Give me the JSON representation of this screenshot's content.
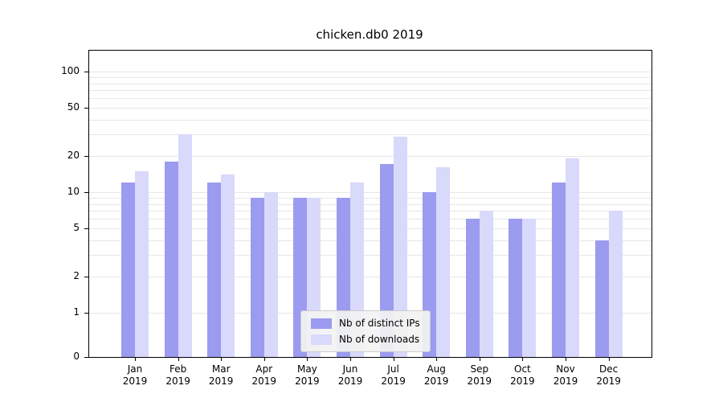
{
  "chart_data": {
    "type": "bar",
    "title": "chicken.db0 2019",
    "year": "2019",
    "categories": [
      "Jan",
      "Feb",
      "Mar",
      "Apr",
      "May",
      "Jun",
      "Jul",
      "Aug",
      "Sep",
      "Oct",
      "Nov",
      "Dec"
    ],
    "series": [
      {
        "name": "Nb of distinct IPs",
        "color": "#9b9bef",
        "values": [
          12,
          18,
          12,
          9,
          9,
          9,
          17,
          10,
          6,
          6,
          12,
          4
        ]
      },
      {
        "name": "Nb of downloads",
        "color": "#d9d9fb",
        "values": [
          15,
          30,
          14,
          10,
          9,
          12,
          29,
          16,
          7,
          6,
          19,
          7
        ]
      }
    ],
    "yscale": "symlog",
    "ylim": [
      0,
      150
    ],
    "y_ticks": [
      0,
      1,
      2,
      5,
      10,
      20,
      50,
      100
    ],
    "grid_values": [
      1,
      2,
      3,
      4,
      5,
      6,
      7,
      8,
      9,
      10,
      20,
      30,
      40,
      50,
      60,
      70,
      80,
      90,
      100
    ],
    "grid": "on",
    "legend_position": "bottom-center",
    "xlabel": "",
    "ylabel": "",
    "colors": {
      "grid": "#e7e7e7",
      "axis": "#000000",
      "legend_bg": "#f3f3f3",
      "legend_border": "#cccccc"
    }
  }
}
